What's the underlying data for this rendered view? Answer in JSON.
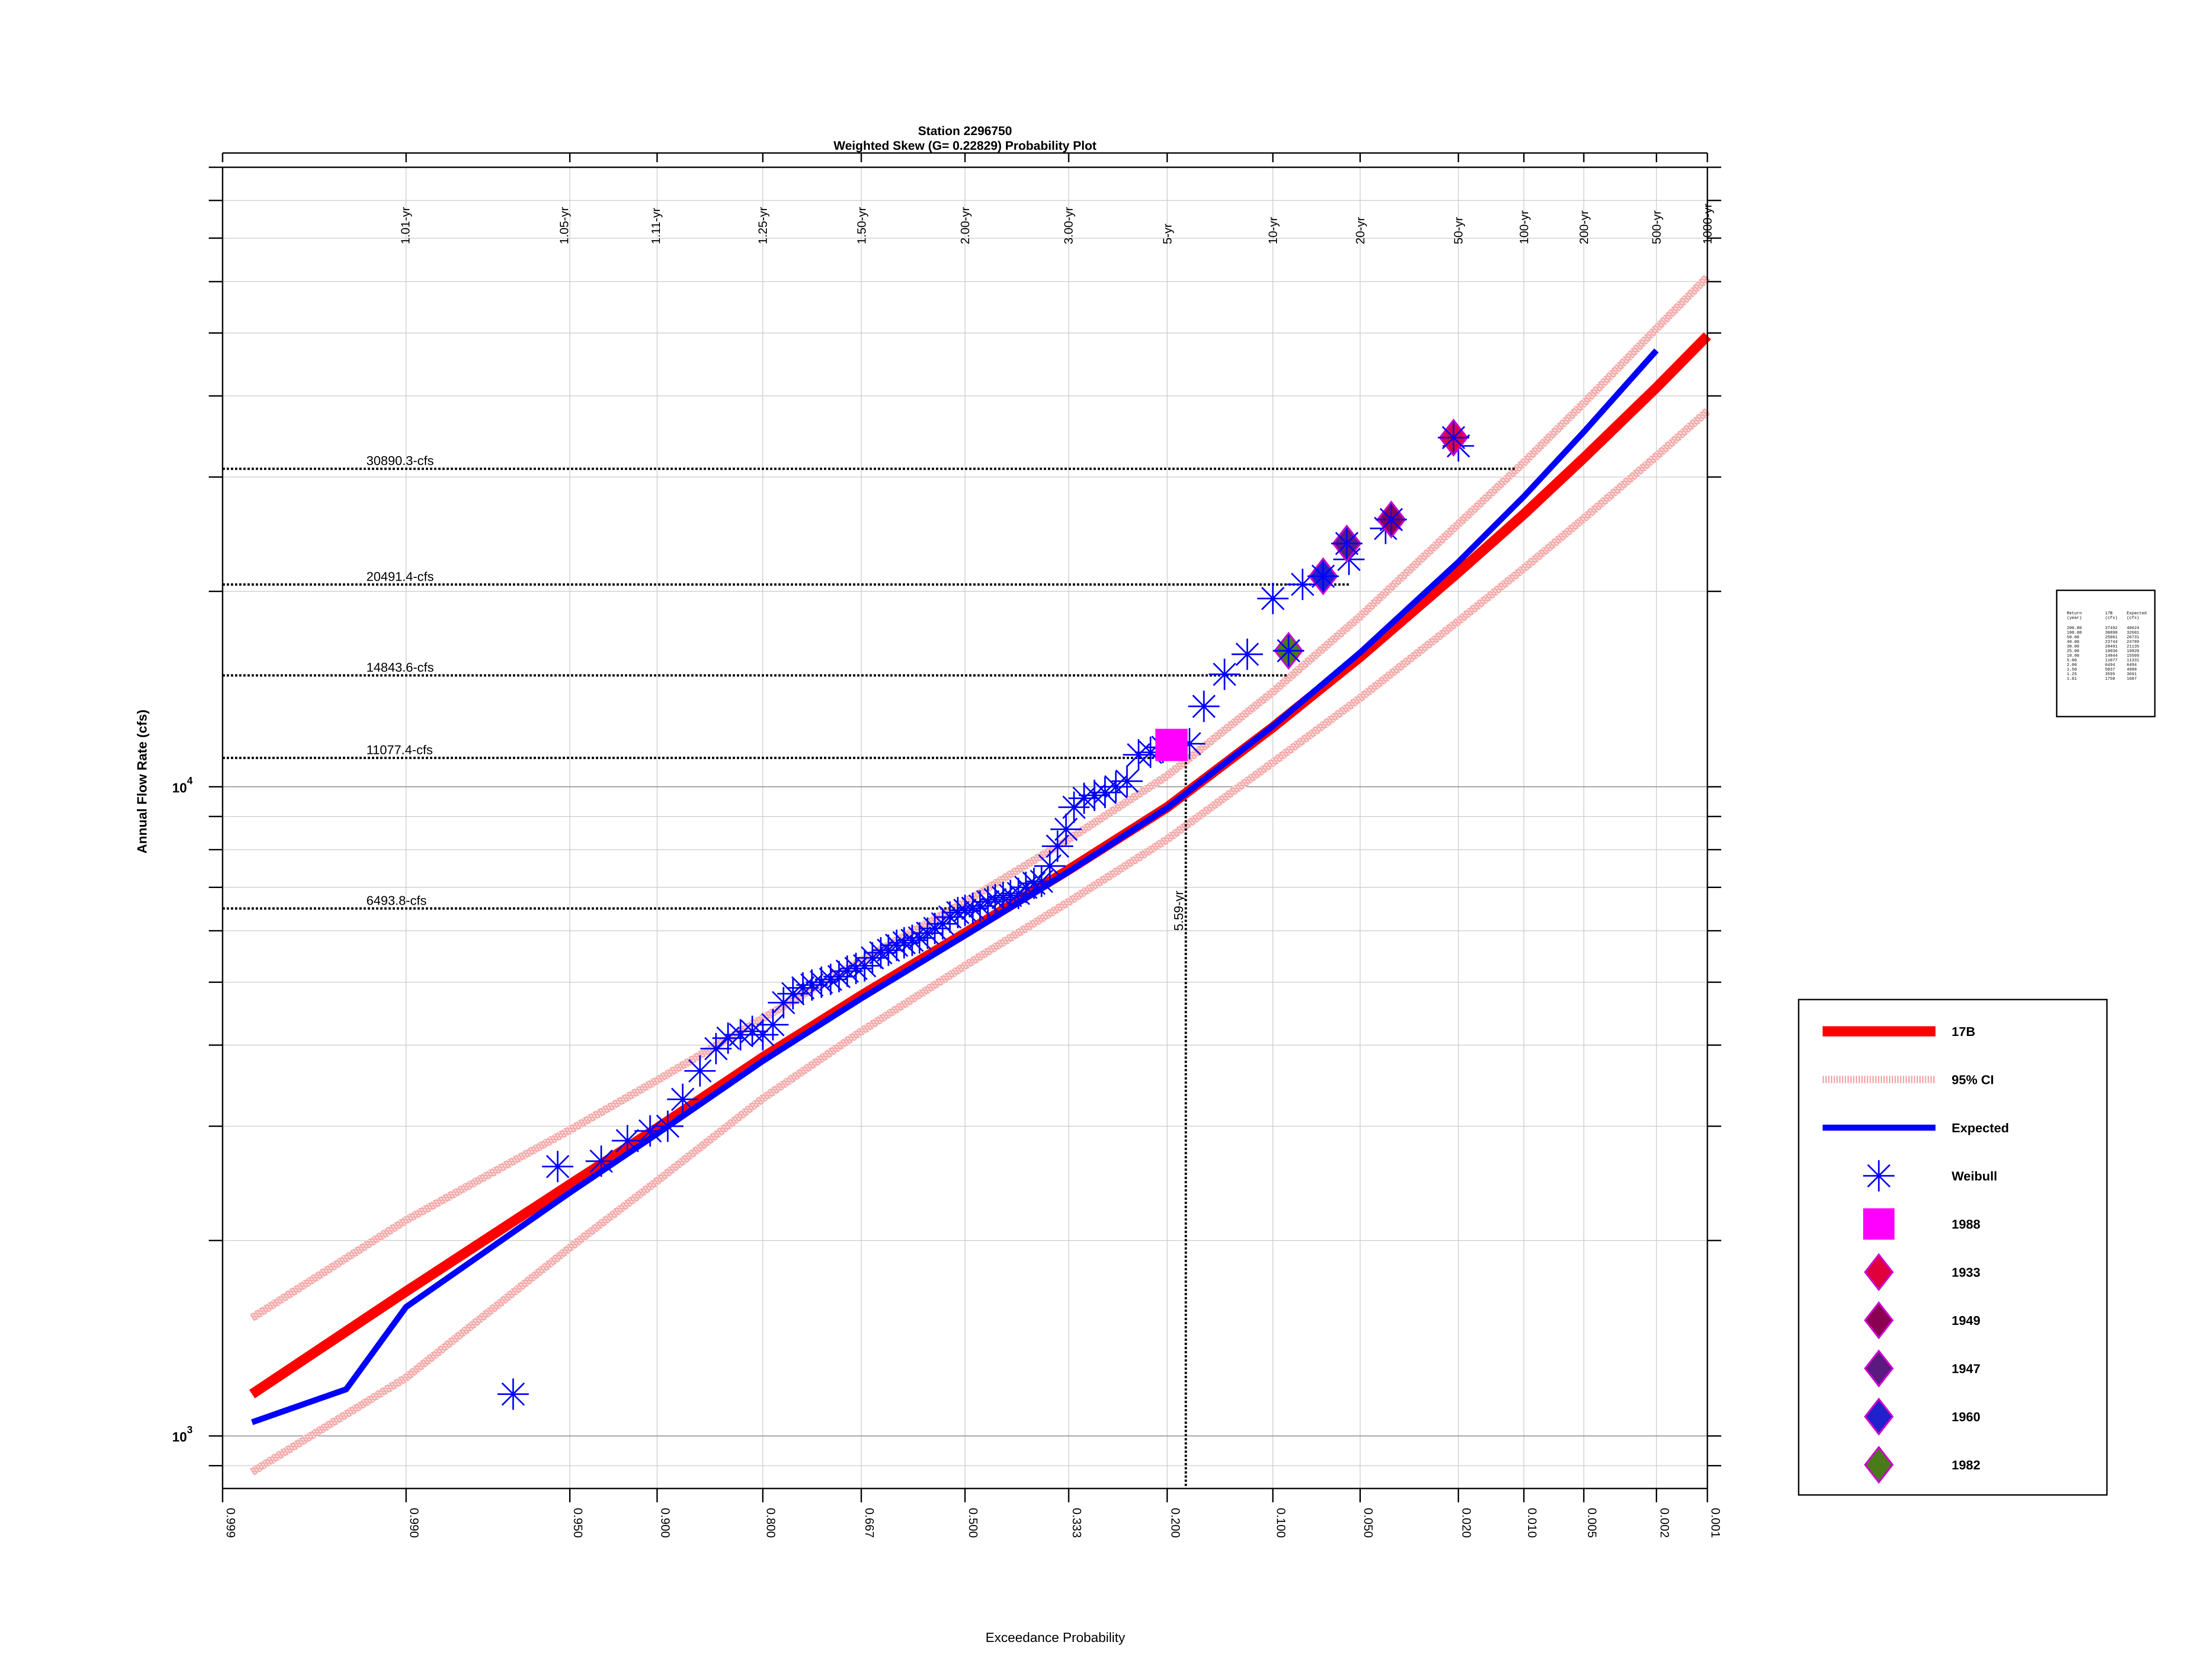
{
  "chart_data": {
    "type": "scatter",
    "title": "Station 2296750",
    "subtitle": "Weighted Skew (G= 0.22829) Probability Plot",
    "xlabel": "Exceedance Probability",
    "ylabel": "Annual Flow Rate (cfs)",
    "xscale": "normal-probability",
    "yscale": "log",
    "xlim": [
      0.999,
      0.001
    ],
    "ylim": [
      830,
      90000
    ],
    "grid": true,
    "legend_position": "right",
    "x_tick_labels": [
      "0.999",
      "0.990",
      "0.950",
      "0.900",
      "0.800",
      "0.667",
      "0.500",
      "0.333",
      "0.200",
      "0.100",
      "0.050",
      "0.020",
      "0.010",
      "0.005",
      "0.002",
      "0.001"
    ],
    "return_period_labels": [
      "1.01-yr",
      "1.05-yr",
      "1.11-yr",
      "1.25-yr",
      "1.50-yr",
      "2.00-yr",
      "3.00-yr",
      "5-yr",
      "10-yr",
      "20-yr",
      "50-yr",
      "100-yr",
      "200-yr",
      "500-yr",
      "1000-yr"
    ],
    "y_tick_labels": [
      {
        "base": "10",
        "exp": "3"
      },
      {
        "base": "10",
        "exp": "4"
      }
    ],
    "legend": [
      {
        "label": "17B",
        "kind": "line",
        "color": "#ff0000"
      },
      {
        "label": "95% CI",
        "kind": "hatch",
        "color": "#f4a9a9"
      },
      {
        "label": "Expected",
        "kind": "line",
        "color": "#0000ff"
      },
      {
        "label": "Weibull",
        "kind": "asterisk",
        "color": "#0000ff"
      },
      {
        "label": "1988",
        "kind": "square",
        "color": "#ff00ff"
      },
      {
        "label": "1933",
        "kind": "diamond",
        "color": "#e0003c",
        "stroke": "#cc00cc"
      },
      {
        "label": "1949",
        "kind": "diamond",
        "color": "#8b0050",
        "stroke": "#cc00cc"
      },
      {
        "label": "1947",
        "kind": "diamond",
        "color": "#5a1a80",
        "stroke": "#cc00cc"
      },
      {
        "label": "1960",
        "kind": "diamond",
        "color": "#2020cc",
        "stroke": "#cc00cc"
      },
      {
        "label": "1982",
        "kind": "diamond",
        "color": "#4a7a1a",
        "stroke": "#cc00cc"
      }
    ],
    "series": [
      {
        "name": "17B",
        "color": "#ff0000",
        "points": [
          [
            0.9985,
            1160
          ],
          [
            0.99,
            1670
          ],
          [
            0.95,
            2440
          ],
          [
            0.9,
            2980
          ],
          [
            0.8,
            3830
          ],
          [
            0.667,
            4770
          ],
          [
            0.5,
            5950
          ],
          [
            0.333,
            7450
          ],
          [
            0.2,
            9300
          ],
          [
            0.1,
            12350
          ],
          [
            0.05,
            15850
          ],
          [
            0.02,
            21400
          ],
          [
            0.01,
            26300
          ],
          [
            0.005,
            32100
          ],
          [
            0.002,
            41200
          ],
          [
            0.001,
            49500
          ]
        ]
      },
      {
        "name": "Expected",
        "color": "#0000ff",
        "points": [
          [
            0.9985,
            1050
          ],
          [
            0.995,
            1180
          ],
          [
            0.99,
            1580
          ],
          [
            0.95,
            2370
          ],
          [
            0.9,
            2920
          ],
          [
            0.8,
            3780
          ],
          [
            0.667,
            4720
          ],
          [
            0.5,
            5900
          ],
          [
            0.333,
            7400
          ],
          [
            0.2,
            9280
          ],
          [
            0.1,
            12400
          ],
          [
            0.05,
            16100
          ],
          [
            0.02,
            22200
          ],
          [
            0.01,
            28000
          ],
          [
            0.005,
            35200
          ],
          [
            0.002,
            47000
          ]
        ]
      },
      {
        "name": "95% CI upper",
        "color": "#f4a9a9",
        "points": [
          [
            0.9985,
            1520
          ],
          [
            0.99,
            2150
          ],
          [
            0.95,
            2960
          ],
          [
            0.9,
            3530
          ],
          [
            0.8,
            4400
          ],
          [
            0.667,
            5400
          ],
          [
            0.5,
            6650
          ],
          [
            0.333,
            8300
          ],
          [
            0.2,
            10400
          ],
          [
            0.1,
            14000
          ],
          [
            0.05,
            18300
          ],
          [
            0.02,
            25400
          ],
          [
            0.01,
            31600
          ],
          [
            0.005,
            39000
          ],
          [
            0.002,
            50800
          ],
          [
            0.001,
            61000
          ]
        ]
      },
      {
        "name": "95% CI lower",
        "color": "#f4a9a9",
        "points": [
          [
            0.9985,
            880
          ],
          [
            0.99,
            1230
          ],
          [
            0.95,
            1950
          ],
          [
            0.9,
            2470
          ],
          [
            0.8,
            3310
          ],
          [
            0.667,
            4200
          ],
          [
            0.5,
            5300
          ],
          [
            0.333,
            6650
          ],
          [
            0.2,
            8300
          ],
          [
            0.1,
            10900
          ],
          [
            0.05,
            13700
          ],
          [
            0.02,
            18000
          ],
          [
            0.01,
            21700
          ],
          [
            0.005,
            25900
          ],
          [
            0.002,
            32300
          ],
          [
            0.001,
            37900
          ]
        ]
      }
    ],
    "weibull_points": [
      [
        0.97,
        1160
      ],
      [
        0.955,
        2600
      ],
      [
        0.935,
        2650
      ],
      [
        0.92,
        2850
      ],
      [
        0.905,
        2950
      ],
      [
        0.892,
        3000
      ],
      [
        0.88,
        3300
      ],
      [
        0.865,
        3650
      ],
      [
        0.85,
        3950
      ],
      [
        0.838,
        4100
      ],
      [
        0.825,
        4150
      ],
      [
        0.812,
        4200
      ],
      [
        0.8,
        4150
      ],
      [
        0.788,
        4300
      ],
      [
        0.775,
        4650
      ],
      [
        0.763,
        4800
      ],
      [
        0.75,
        4900
      ],
      [
        0.738,
        4950
      ],
      [
        0.725,
        5000
      ],
      [
        0.712,
        5050
      ],
      [
        0.7,
        5100
      ],
      [
        0.688,
        5200
      ],
      [
        0.675,
        5250
      ],
      [
        0.662,
        5300
      ],
      [
        0.65,
        5450
      ],
      [
        0.637,
        5550
      ],
      [
        0.625,
        5600
      ],
      [
        0.612,
        5700
      ],
      [
        0.6,
        5750
      ],
      [
        0.587,
        5800
      ],
      [
        0.575,
        5850
      ],
      [
        0.562,
        5950
      ],
      [
        0.55,
        6050
      ],
      [
        0.537,
        6150
      ],
      [
        0.525,
        6300
      ],
      [
        0.512,
        6400
      ],
      [
        0.5,
        6450
      ],
      [
        0.487,
        6500
      ],
      [
        0.475,
        6550
      ],
      [
        0.462,
        6650
      ],
      [
        0.45,
        6700
      ],
      [
        0.437,
        6750
      ],
      [
        0.425,
        6800
      ],
      [
        0.412,
        6850
      ],
      [
        0.4,
        7000
      ],
      [
        0.387,
        7100
      ],
      [
        0.375,
        7150
      ],
      [
        0.362,
        7550
      ],
      [
        0.35,
        8100
      ],
      [
        0.337,
        8600
      ],
      [
        0.325,
        9300
      ],
      [
        0.31,
        9600
      ],
      [
        0.295,
        9700
      ],
      [
        0.28,
        9800
      ],
      [
        0.265,
        10000
      ],
      [
        0.25,
        10200
      ],
      [
        0.235,
        11200
      ],
      [
        0.22,
        11300
      ],
      [
        0.205,
        11500
      ],
      [
        0.19,
        11600
      ],
      [
        0.175,
        11650
      ],
      [
        0.16,
        13300
      ],
      [
        0.14,
        14900
      ],
      [
        0.12,
        16000
      ],
      [
        0.1,
        19500
      ],
      [
        0.08,
        20500
      ],
      [
        0.055,
        22400
      ],
      [
        0.04,
        25000
      ],
      [
        0.02,
        33500
      ]
    ],
    "highlighted_points": [
      {
        "label": "1988",
        "x": 0.195,
        "y": 11600
      },
      {
        "label": "1933",
        "x": 0.021,
        "y": 34500
      },
      {
        "label": "1949",
        "x": 0.038,
        "y": 25800
      },
      {
        "label": "1947",
        "x": 0.056,
        "y": 23700
      },
      {
        "label": "1960",
        "x": 0.068,
        "y": 21100
      },
      {
        "label": "1982",
        "x": 0.089,
        "y": 16200
      }
    ],
    "reference_lines": [
      {
        "label": "30890.3-cfs",
        "y": 30890.3,
        "x_end": 0.011
      },
      {
        "label": "20491.4-cfs",
        "y": 20491.4,
        "x_end": 0.055
      },
      {
        "label": "14843.6-cfs",
        "y": 14843.6,
        "x_end": 0.09
      },
      {
        "label": "11077.4-cfs",
        "y": 11077.4,
        "x_end": 0.181
      },
      {
        "label": "6493.8-cfs",
        "y": 6493.8,
        "x_end": 0.49
      }
    ],
    "vertical_reference": {
      "label": "5.59-yr",
      "x": 0.179
    },
    "summary_table": {
      "headers": [
        "Return",
        "17B",
        "Expected"
      ],
      "units": [
        "(year)",
        "(cfs)",
        "(cfs)"
      ],
      "rows": [
        [
          "200.00",
          "37492",
          "40624"
        ],
        [
          "100.00",
          "30890",
          "32601"
        ],
        [
          "50.00",
          "25061",
          "26731"
        ],
        [
          "40.00",
          "23744",
          "24789"
        ],
        [
          "30.00",
          "20491",
          "21135"
        ],
        [
          "25.00",
          "19036",
          "19820"
        ],
        [
          "10.00",
          "14844",
          "15509"
        ],
        [
          "5.00",
          "11077",
          "11331"
        ],
        [
          "2.00",
          "6494",
          "6494"
        ],
        [
          "1.50",
          "5037",
          "4988"
        ],
        [
          "1.25",
          "3595",
          "3691"
        ],
        [
          "1.01",
          "1750",
          "1607"
        ]
      ]
    }
  }
}
